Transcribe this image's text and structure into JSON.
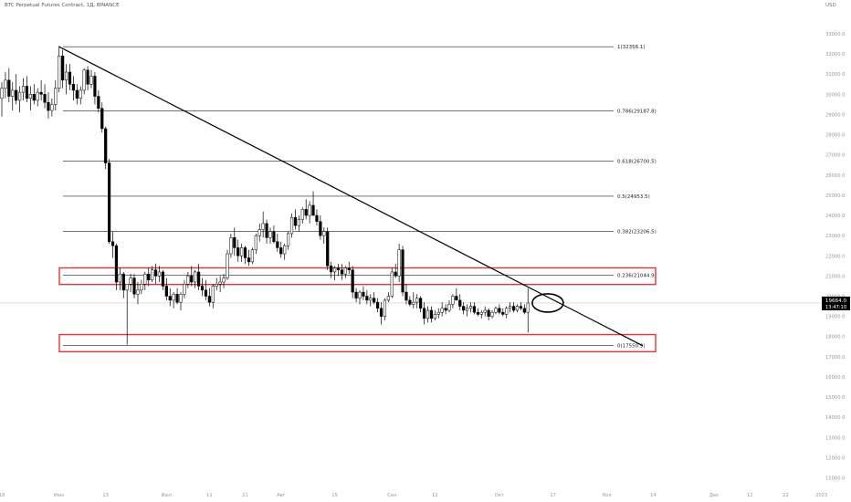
{
  "header": {
    "symbol": "BTC Perpetual Futures Contract, 1Д, BINANCE"
  },
  "axis_unit": "USD",
  "price_badge": {
    "price": "19664.0",
    "countdown": "13:47:10"
  },
  "colors": {
    "bull": "#ffffff",
    "bear": "#000000",
    "wick": "#000000",
    "zone": "#e8323c",
    "badge_bg": "#000000",
    "axis_text": "#999999"
  },
  "chart_data": {
    "type": "candlestick",
    "title": "BTC Perpetual Futures Contract, 1Д, BINANCE",
    "ylabel": "USD",
    "ylim": [
      10800,
      34400
    ],
    "yticks": [
      "11000.0",
      "12000.0",
      "13000.0",
      "14000.0",
      "15000.0",
      "16000.0",
      "17000.0",
      "18000.0",
      "19000.0",
      "20000.0",
      "21000.0",
      "22000.0",
      "23000.0",
      "24000.0",
      "25000.0",
      "26000.0",
      "27000.0",
      "28000.0",
      "29000.0",
      "30000.0",
      "31000.0",
      "32000.0",
      "33000.0"
    ],
    "xticks": [
      {
        "label": "18",
        "i": 0
      },
      {
        "label": "Июн",
        "i": 16
      },
      {
        "label": "13",
        "i": 29
      },
      {
        "label": "Июл",
        "i": 46
      },
      {
        "label": "11",
        "i": 58
      },
      {
        "label": "21",
        "i": 68
      },
      {
        "label": "Авг",
        "i": 78
      },
      {
        "label": "15",
        "i": 93
      },
      {
        "label": "Сен",
        "i": 109
      },
      {
        "label": "12",
        "i": 121
      },
      {
        "label": "Окт",
        "i": 139
      },
      {
        "label": "17",
        "i": 154
      },
      {
        "label": "Ноя",
        "i": 169
      },
      {
        "label": "14",
        "i": 182
      },
      {
        "label": "Дек",
        "i": 199
      },
      {
        "label": "12",
        "i": 209
      },
      {
        "label": "22",
        "i": 219
      },
      {
        "label": "2023",
        "i": 229
      }
    ],
    "fib_levels": [
      {
        "label": "1(32356.1)",
        "value": 32356.1
      },
      {
        "label": "0.786(29187.8)",
        "value": 29187.8
      },
      {
        "label": "0.618(26700.5)",
        "value": 26700.5
      },
      {
        "label": "0.5(24953.5)",
        "value": 24953.5
      },
      {
        "label": "0.382(23206.5)",
        "value": 23206.5
      },
      {
        "label": "0.236(21044.9)",
        "value": 21044.9
      },
      {
        "label": "0(17550.9)",
        "value": 17550.9
      }
    ],
    "zones": [
      [
        20580,
        21400
      ],
      [
        17250,
        18100
      ]
    ],
    "trendline": {
      "from_i": 16,
      "from_y": 32356,
      "to_i": 179,
      "to_y": 17550
    },
    "marker": {
      "i": 151,
      "y": 19664
    },
    "ohlc": [
      [
        29800,
        30600,
        28900,
        30300
      ],
      [
        30300,
        31100,
        29800,
        30700
      ],
      [
        30700,
        31300,
        29600,
        29900
      ],
      [
        29900,
        30600,
        29200,
        30200
      ],
      [
        30200,
        31000,
        29500,
        29700
      ],
      [
        29700,
        30400,
        29100,
        30100
      ],
      [
        30100,
        30800,
        29700,
        30400
      ],
      [
        30400,
        30900,
        29600,
        29800
      ],
      [
        29800,
        30400,
        29200,
        30000
      ],
      [
        30000,
        30500,
        29500,
        29700
      ],
      [
        29700,
        30300,
        29400,
        30100
      ],
      [
        30100,
        30700,
        29700,
        30000
      ],
      [
        30000,
        30500,
        29300,
        29600
      ],
      [
        29600,
        30100,
        28800,
        29200
      ],
      [
        29200,
        29800,
        28900,
        29500
      ],
      [
        29500,
        30700,
        29200,
        30300
      ],
      [
        30300,
        32400,
        30100,
        31900
      ],
      [
        31900,
        32200,
        30300,
        30700
      ],
      [
        30700,
        31500,
        30000,
        31100
      ],
      [
        31100,
        31500,
        30200,
        30500
      ],
      [
        30500,
        30900,
        29700,
        30200
      ],
      [
        30200,
        30500,
        29500,
        29800
      ],
      [
        29800,
        30400,
        29500,
        30200
      ],
      [
        30200,
        31300,
        30000,
        31200
      ],
      [
        31200,
        31400,
        30200,
        30500
      ],
      [
        30500,
        31200,
        30300,
        30900
      ],
      [
        30900,
        31100,
        29500,
        29900
      ],
      [
        29900,
        30200,
        29100,
        29300
      ],
      [
        29300,
        29600,
        28100,
        28300
      ],
      [
        28300,
        28400,
        26300,
        26600
      ],
      [
        26600,
        26800,
        22600,
        22700
      ],
      [
        22700,
        23200,
        21900,
        22500
      ],
      [
        22500,
        22600,
        20300,
        20700
      ],
      [
        20700,
        21400,
        20300,
        21100
      ],
      [
        21100,
        21200,
        19900,
        20300
      ],
      [
        20300,
        20500,
        17600,
        20600
      ],
      [
        20600,
        21100,
        20200,
        20900
      ],
      [
        20900,
        21100,
        19900,
        20100
      ],
      [
        20100,
        20700,
        19600,
        20300
      ],
      [
        20300,
        20800,
        20100,
        20600
      ],
      [
        20600,
        21200,
        20300,
        21100
      ],
      [
        21100,
        21400,
        20500,
        20800
      ],
      [
        20800,
        21500,
        20700,
        21300
      ],
      [
        21300,
        21600,
        20600,
        21000
      ],
      [
        21000,
        21500,
        20700,
        21200
      ],
      [
        21200,
        21300,
        20300,
        20500
      ],
      [
        20500,
        20900,
        19800,
        20000
      ],
      [
        20000,
        20400,
        19500,
        19800
      ],
      [
        19800,
        20200,
        19400,
        20100
      ],
      [
        20100,
        20400,
        19600,
        19700
      ],
      [
        19700,
        20200,
        19300,
        20100
      ],
      [
        20100,
        20800,
        19900,
        20600
      ],
      [
        20600,
        21200,
        20400,
        21000
      ],
      [
        21000,
        21500,
        20500,
        20700
      ],
      [
        20700,
        21300,
        20400,
        21200
      ],
      [
        21200,
        21600,
        20300,
        20500
      ],
      [
        20500,
        20900,
        20000,
        20300
      ],
      [
        20300,
        20800,
        19800,
        20000
      ],
      [
        20000,
        20400,
        19500,
        19700
      ],
      [
        19700,
        20600,
        19400,
        20500
      ],
      [
        20500,
        20900,
        20300,
        20600
      ],
      [
        20600,
        21000,
        20200,
        20700
      ],
      [
        20700,
        21100,
        20400,
        20900
      ],
      [
        20900,
        22300,
        20800,
        22100
      ],
      [
        22100,
        23100,
        21900,
        22900
      ],
      [
        22900,
        23400,
        22000,
        22400
      ],
      [
        22400,
        22800,
        21700,
        22000
      ],
      [
        22000,
        22600,
        21700,
        22400
      ],
      [
        22400,
        22500,
        21600,
        21900
      ],
      [
        21900,
        22300,
        21500,
        21700
      ],
      [
        21700,
        22400,
        21600,
        22300
      ],
      [
        22300,
        23100,
        22100,
        23000
      ],
      [
        23000,
        23600,
        22700,
        23300
      ],
      [
        23300,
        24200,
        22900,
        23600
      ],
      [
        23600,
        23800,
        22600,
        22900
      ],
      [
        22900,
        23400,
        22600,
        23200
      ],
      [
        23200,
        23500,
        22600,
        22700
      ],
      [
        22700,
        23100,
        22200,
        22400
      ],
      [
        22400,
        22700,
        21900,
        22100
      ],
      [
        22100,
        22600,
        21800,
        22500
      ],
      [
        22500,
        23200,
        22300,
        23100
      ],
      [
        23100,
        24100,
        22900,
        23900
      ],
      [
        23900,
        24300,
        23300,
        23500
      ],
      [
        23500,
        24000,
        23200,
        23800
      ],
      [
        23800,
        24400,
        23600,
        24300
      ],
      [
        24300,
        24800,
        23800,
        24000
      ],
      [
        24000,
        24700,
        23600,
        24500
      ],
      [
        24500,
        25200,
        24100,
        24000
      ],
      [
        24000,
        24300,
        23500,
        23700
      ],
      [
        23700,
        24000,
        22800,
        23000
      ],
      [
        23000,
        23400,
        22600,
        23200
      ],
      [
        23200,
        23400,
        21300,
        21500
      ],
      [
        21500,
        21700,
        20900,
        21200
      ],
      [
        21200,
        21500,
        20800,
        21400
      ],
      [
        21400,
        21600,
        21000,
        21300
      ],
      [
        21300,
        21600,
        20800,
        21100
      ],
      [
        21100,
        21500,
        20900,
        21400
      ],
      [
        21400,
        21700,
        21100,
        21300
      ],
      [
        21300,
        21500,
        19900,
        20200
      ],
      [
        20200,
        20400,
        19700,
        19900
      ],
      [
        19900,
        20300,
        19600,
        20200
      ],
      [
        20200,
        20500,
        19800,
        20000
      ],
      [
        20000,
        20300,
        19600,
        19800
      ],
      [
        19800,
        20100,
        19500,
        19900
      ],
      [
        19900,
        20200,
        19600,
        19700
      ],
      [
        19700,
        19900,
        19200,
        19400
      ],
      [
        19400,
        19700,
        18600,
        19000
      ],
      [
        19000,
        19900,
        18800,
        19800
      ],
      [
        19800,
        20200,
        19700,
        20000
      ],
      [
        20000,
        21400,
        19900,
        21200
      ],
      [
        21200,
        21600,
        20900,
        21000
      ],
      [
        21000,
        22600,
        20700,
        22300
      ],
      [
        22300,
        22500,
        20000,
        20200
      ],
      [
        20200,
        20600,
        19600,
        19800
      ],
      [
        19800,
        20000,
        19500,
        19600
      ],
      [
        19600,
        20200,
        19400,
        19700
      ],
      [
        19700,
        20100,
        19400,
        19900
      ],
      [
        19900,
        20000,
        19200,
        19400
      ],
      [
        19400,
        19700,
        18600,
        18900
      ],
      [
        18900,
        19500,
        18700,
        19300
      ],
      [
        19300,
        19500,
        18700,
        18900
      ],
      [
        18900,
        19300,
        18800,
        19100
      ],
      [
        19100,
        19400,
        18900,
        19200
      ],
      [
        19200,
        19700,
        19000,
        19400
      ],
      [
        19400,
        19600,
        19100,
        19300
      ],
      [
        19300,
        19800,
        19200,
        19600
      ],
      [
        19600,
        20100,
        19400,
        20000
      ],
      [
        20000,
        20400,
        19800,
        19800
      ],
      [
        19800,
        20100,
        19300,
        19500
      ],
      [
        19500,
        19700,
        19100,
        19300
      ],
      [
        19300,
        19600,
        19000,
        19400
      ],
      [
        19400,
        19700,
        19200,
        19500
      ],
      [
        19500,
        19700,
        19100,
        19200
      ],
      [
        19200,
        19400,
        19000,
        19100
      ],
      [
        19100,
        19300,
        18900,
        19200
      ],
      [
        19200,
        19500,
        19000,
        19300
      ],
      [
        19300,
        19400,
        18800,
        19000
      ],
      [
        19000,
        19300,
        18900,
        19200
      ],
      [
        19200,
        19500,
        19100,
        19400
      ],
      [
        19400,
        19600,
        19100,
        19200
      ],
      [
        19200,
        19400,
        19000,
        19100
      ],
      [
        19100,
        19500,
        18900,
        19400
      ],
      [
        19400,
        19700,
        19200,
        19500
      ],
      [
        19500,
        19700,
        19200,
        19300
      ],
      [
        19300,
        19600,
        19200,
        19500
      ],
      [
        19500,
        19700,
        19300,
        19400
      ],
      [
        19400,
        19600,
        19100,
        19200
      ],
      [
        19200,
        20400,
        18200,
        19664
      ]
    ]
  }
}
